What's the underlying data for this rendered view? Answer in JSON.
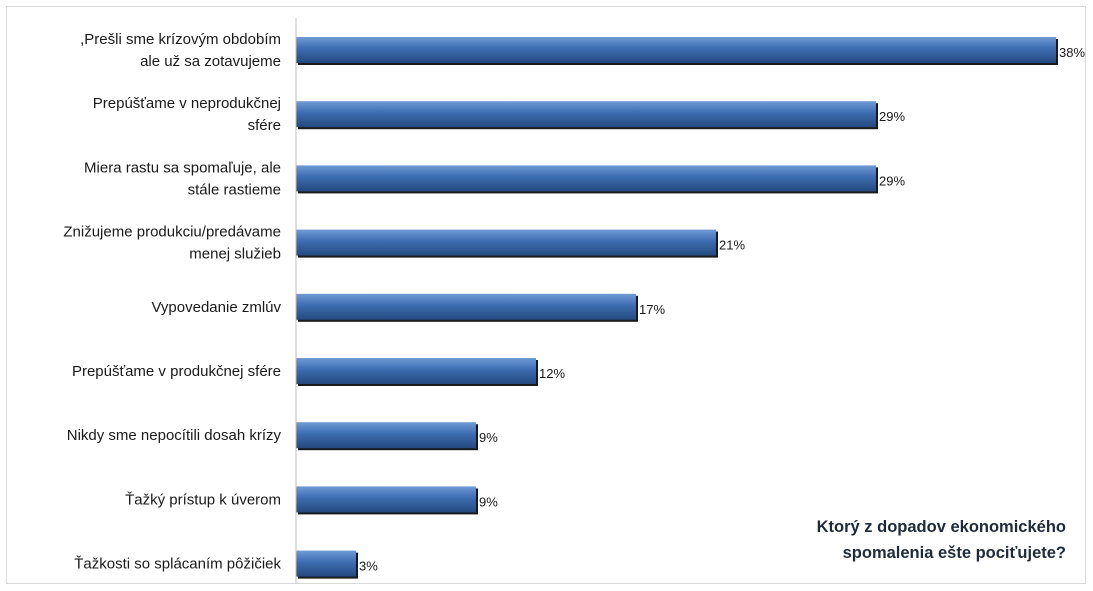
{
  "chart_data": {
    "type": "bar",
    "orientation": "horizontal",
    "title": "Ktorý z dopadov ekonomického spomalenia ešte pociťujete?",
    "title_lines": [
      "Ktorý z dopadov ekonomického",
      "spomalenia ešte pociťujete?"
    ],
    "title_placement": "bottom-right",
    "categories": [
      ",Prešli sme krízovým obdobím ale už sa zotavujeme",
      "Prepúšťame v neprodukčnej sfére",
      "Miera rastu sa spomaľuje, ale stále rastieme",
      "Znižujeme produkciu/predávame menej služieb",
      "Vypovedanie zmlúv",
      "Prepúšťame v produkčnej sfére",
      "Nikdy sme nepocítili dosah krízy",
      "Ťažký prístup k úverom",
      "Ťažkosti so splácaním pôžičiek"
    ],
    "category_lines": [
      [
        ",Prešli sme krízovým obdobím",
        "ale už sa zotavujeme"
      ],
      [
        "Prepúšťame v neprodukčnej",
        "sfére"
      ],
      [
        "Miera rastu sa spomaľuje, ale",
        "stále rastieme"
      ],
      [
        "Znižujeme produkciu/predávame",
        "menej služieb"
      ],
      [
        "Vypovedanie zmlúv"
      ],
      [
        "Prepúšťame v produkčnej sfére"
      ],
      [
        "Nikdy sme nepocítili dosah krízy"
      ],
      [
        "Ťažký prístup k úverom"
      ],
      [
        "Ťažkosti so splácaním pôžičiek"
      ]
    ],
    "values": [
      38,
      29,
      29,
      21,
      17,
      12,
      9,
      9,
      3
    ],
    "value_labels": [
      "38%",
      "29%",
      "29%",
      "21%",
      "17%",
      "12%",
      "9%",
      "9%",
      "3%"
    ],
    "unit": "%",
    "xlim": [
      0,
      38
    ],
    "grid": false,
    "legend": "none",
    "bar_color": "#3d6cb0",
    "bar_color_light": "#6f9bd6",
    "bar_color_dark": "#25497f",
    "axis_color": "#bfbfbf"
  }
}
